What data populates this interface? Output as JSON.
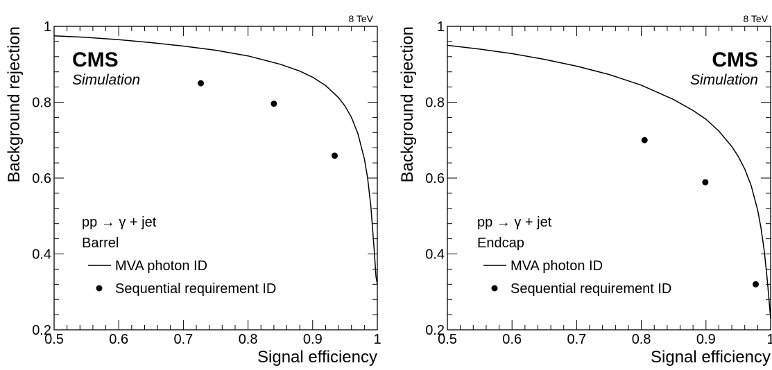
{
  "chart_data": [
    {
      "type": "scatter",
      "panel": "barrel",
      "energy_label": "8 TeV",
      "cms_label": "CMS",
      "sim_label": "Simulation",
      "xlabel": "Signal efficiency",
      "ylabel": "Background rejection",
      "xlim": [
        0.5,
        1.0
      ],
      "ylim": [
        0.2,
        1.0
      ],
      "xticks": [
        "0.5",
        "0.6",
        "0.7",
        "0.8",
        "0.9",
        "1"
      ],
      "yticks": [
        "0.2",
        "0.4",
        "0.6",
        "0.8",
        "1"
      ],
      "legend": {
        "process": "pp → γ + jet",
        "region": "Barrel",
        "line_label": "MVA photon ID",
        "marker_label": "Sequential requirement ID"
      },
      "series": [
        {
          "name": "MVA photon ID",
          "style": "line",
          "x": [
            0.5,
            0.55,
            0.6,
            0.65,
            0.7,
            0.75,
            0.8,
            0.85,
            0.88,
            0.9,
            0.92,
            0.94,
            0.95,
            0.96,
            0.97,
            0.98,
            0.985,
            0.99,
            0.995,
            0.998,
            1.0
          ],
          "y": [
            0.975,
            0.971,
            0.965,
            0.957,
            0.948,
            0.937,
            0.922,
            0.9,
            0.882,
            0.866,
            0.844,
            0.812,
            0.79,
            0.76,
            0.717,
            0.65,
            0.6,
            0.525,
            0.415,
            0.34,
            0.32
          ]
        },
        {
          "name": "Sequential requirement ID",
          "style": "marker",
          "x": [
            0.727,
            0.84,
            0.934
          ],
          "y": [
            0.85,
            0.796,
            0.659
          ]
        }
      ]
    },
    {
      "type": "scatter",
      "panel": "endcap",
      "energy_label": "8 TeV",
      "cms_label": "CMS",
      "sim_label": "Simulation",
      "xlabel": "Signal efficiency",
      "ylabel": "Background rejection",
      "xlim": [
        0.5,
        1.0
      ],
      "ylim": [
        0.2,
        1.0
      ],
      "xticks": [
        "0.5",
        "0.6",
        "0.7",
        "0.8",
        "0.9",
        "1"
      ],
      "yticks": [
        "0.2",
        "0.4",
        "0.6",
        "0.8",
        "1"
      ],
      "legend": {
        "process": "pp → γ + jet",
        "region": "Endcap",
        "line_label": "MVA photon ID",
        "marker_label": "Sequential requirement ID"
      },
      "series": [
        {
          "name": "MVA photon ID",
          "style": "line",
          "x": [
            0.5,
            0.55,
            0.6,
            0.65,
            0.7,
            0.75,
            0.8,
            0.85,
            0.88,
            0.9,
            0.92,
            0.94,
            0.95,
            0.96,
            0.97,
            0.98,
            0.985,
            0.99,
            0.995,
            1.0
          ],
          "y": [
            0.95,
            0.94,
            0.928,
            0.913,
            0.895,
            0.873,
            0.845,
            0.807,
            0.778,
            0.755,
            0.724,
            0.683,
            0.657,
            0.624,
            0.58,
            0.515,
            0.47,
            0.41,
            0.33,
            0.23
          ]
        },
        {
          "name": "Sequential requirement ID",
          "style": "marker",
          "x": [
            0.805,
            0.899,
            0.977
          ],
          "y": [
            0.7,
            0.589,
            0.32
          ]
        }
      ]
    }
  ]
}
